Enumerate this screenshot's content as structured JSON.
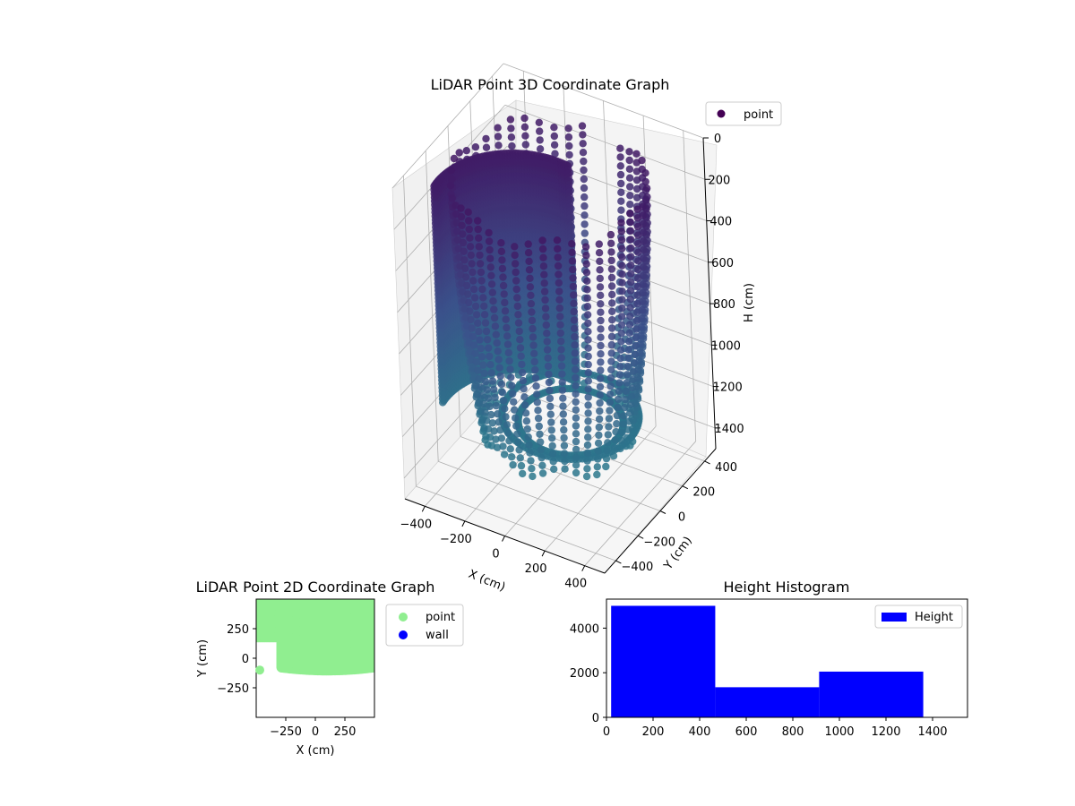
{
  "chart_data": [
    {
      "type": "scatter3d",
      "title": "LiDAR Point 3D Coordinate Graph",
      "xlabel": "X (cm)",
      "ylabel": "Y (cm)",
      "zlabel": "H (cm)",
      "xlim": [
        -500,
        500
      ],
      "ylim": [
        -500,
        500
      ],
      "zlim": [
        1500,
        0
      ],
      "x_ticks": [
        "−400",
        "−200",
        "0",
        "200",
        "400"
      ],
      "y_ticks": [
        "−400",
        "−200",
        "0",
        "200",
        "400"
      ],
      "z_ticks": [
        "0",
        "200",
        "400",
        "600",
        "800",
        "1000",
        "1200",
        "1400"
      ],
      "legend": {
        "position": "top-right",
        "entries": [
          {
            "label": "point",
            "color": "#440154"
          }
        ]
      },
      "colormap": "viridis",
      "grid": true
    },
    {
      "type": "scatter",
      "title": "LiDAR Point 2D Coordinate Graph",
      "xlabel": "X (cm)",
      "ylabel": "Y (cm)",
      "xlim": [
        -500,
        500
      ],
      "ylim": [
        -500,
        500
      ],
      "x_ticks": [
        "−250",
        "0",
        "250"
      ],
      "y_ticks": [
        "250",
        "0",
        "−250"
      ],
      "legend": {
        "position": "outside-right",
        "entries": [
          {
            "label": "point",
            "color": "#90ee90"
          },
          {
            "label": "wall",
            "color": "#0000ff"
          }
        ]
      }
    },
    {
      "type": "bar",
      "title": "Height Histogram",
      "xlim": [
        0,
        1550
      ],
      "ylim": [
        0,
        5300
      ],
      "x_ticks": [
        "0",
        "200",
        "400",
        "600",
        "800",
        "1000",
        "1200",
        "1400"
      ],
      "y_ticks": [
        "0",
        "2000",
        "4000"
      ],
      "bins": [
        {
          "x0": 20,
          "x1": 467,
          "value": 5000
        },
        {
          "x0": 467,
          "x1": 913,
          "value": 1350
        },
        {
          "x0": 913,
          "x1": 1360,
          "value": 2050
        }
      ],
      "bar_color": "#0000ff",
      "legend": {
        "position": "top-right",
        "entries": [
          {
            "label": "Height",
            "color": "#0000ff"
          }
        ]
      }
    }
  ]
}
